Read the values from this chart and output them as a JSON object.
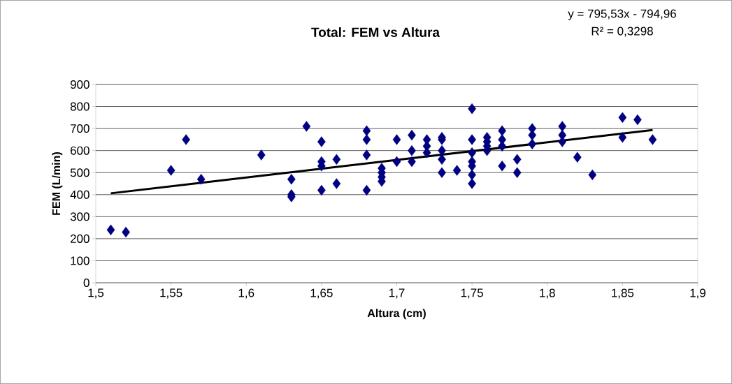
{
  "chart_data": {
    "type": "scatter",
    "title": "Total: FEM vs Altura",
    "xlabel": "Altura (cm)",
    "ylabel": "FEM (L/min)",
    "annotations": [
      "y = 795,53x - 794,96",
      "R² = 0,3298"
    ],
    "xlim": [
      1.5,
      1.9
    ],
    "ylim": [
      0,
      900
    ],
    "xticks": [
      {
        "value": 1.5,
        "label": "1,5"
      },
      {
        "value": 1.55,
        "label": "1,55"
      },
      {
        "value": 1.6,
        "label": "1,6"
      },
      {
        "value": 1.65,
        "label": "1,65"
      },
      {
        "value": 1.7,
        "label": "1,7"
      },
      {
        "value": 1.75,
        "label": "1,75"
      },
      {
        "value": 1.8,
        "label": "1,8"
      },
      {
        "value": 1.85,
        "label": "1,85"
      },
      {
        "value": 1.9,
        "label": "1,9"
      }
    ],
    "yticks": [
      0,
      100,
      200,
      300,
      400,
      500,
      600,
      700,
      800,
      900
    ],
    "grid": "y",
    "marker": "diamond",
    "series": [
      {
        "color": "#000080",
        "x": [
          1.51,
          1.52,
          1.55,
          1.56,
          1.57,
          1.61,
          1.63,
          1.63,
          1.63,
          1.64,
          1.65,
          1.65,
          1.65,
          1.65,
          1.66,
          1.66,
          1.68,
          1.68,
          1.68,
          1.68,
          1.69,
          1.69,
          1.69,
          1.69,
          1.7,
          1.7,
          1.71,
          1.71,
          1.71,
          1.72,
          1.72,
          1.72,
          1.73,
          1.73,
          1.73,
          1.73,
          1.73,
          1.74,
          1.75,
          1.75,
          1.75,
          1.75,
          1.75,
          1.75,
          1.75,
          1.76,
          1.76,
          1.76,
          1.76,
          1.77,
          1.77,
          1.77,
          1.77,
          1.78,
          1.78,
          1.79,
          1.79,
          1.79,
          1.81,
          1.81,
          1.81,
          1.82,
          1.83,
          1.85,
          1.85,
          1.86,
          1.87
        ],
        "values": [
          240,
          230,
          510,
          650,
          470,
          580,
          470,
          400,
          390,
          710,
          640,
          550,
          530,
          420,
          560,
          450,
          690,
          650,
          580,
          420,
          520,
          500,
          480,
          460,
          650,
          550,
          670,
          600,
          550,
          650,
          620,
          590,
          660,
          650,
          600,
          560,
          500,
          510,
          790,
          650,
          590,
          550,
          530,
          490,
          450,
          660,
          640,
          620,
          600,
          690,
          650,
          620,
          530,
          560,
          500,
          700,
          670,
          630,
          710,
          670,
          640,
          570,
          490,
          750,
          660,
          740,
          650
        ]
      },
      {
        "type": "line",
        "color": "#000000",
        "marker": "none",
        "x": [
          1.51,
          1.87
        ],
        "values": [
          406,
          693
        ]
      }
    ]
  }
}
